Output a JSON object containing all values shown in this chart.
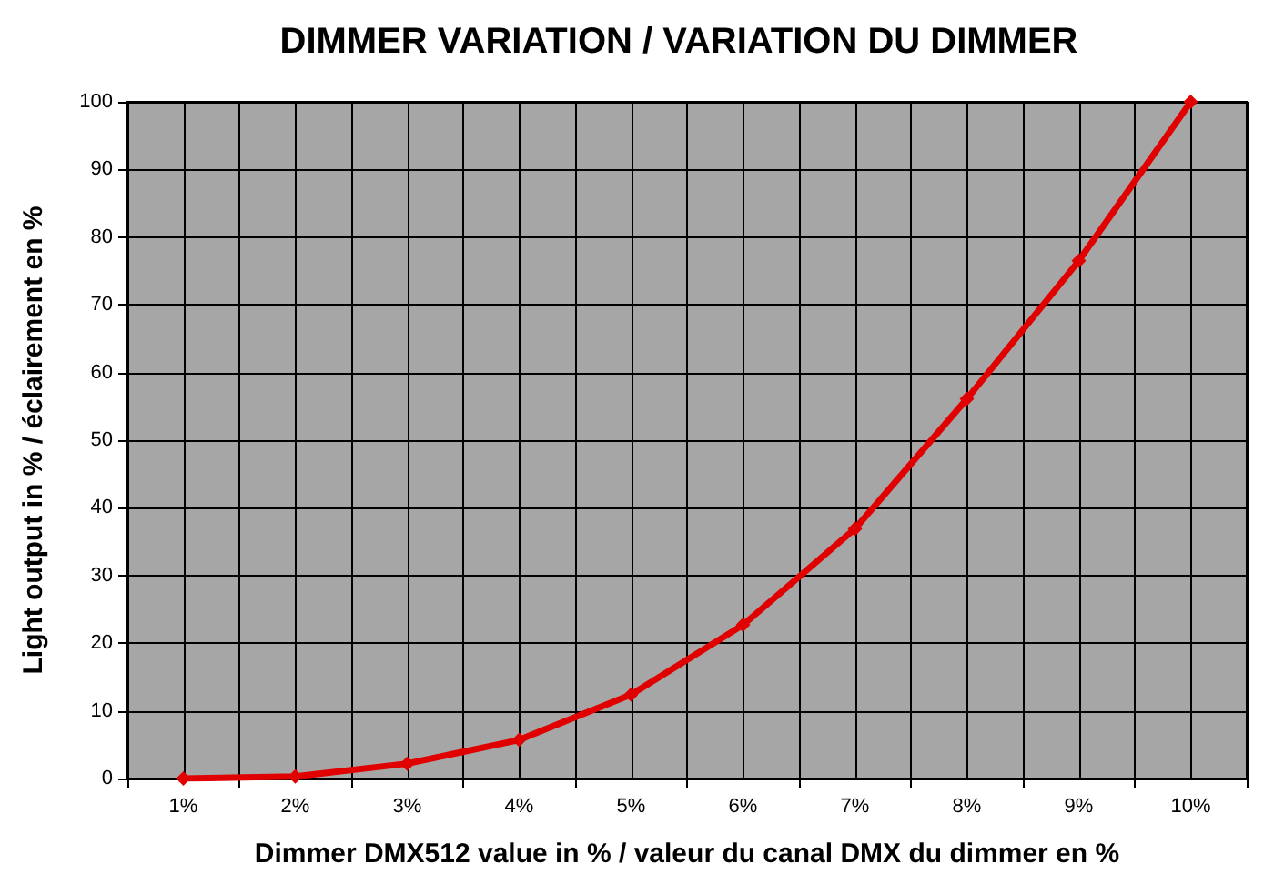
{
  "chart_data": {
    "type": "line",
    "title": "DIMMER VARIATION / VARIATION DU DIMMER",
    "xlabel": "Dimmer DMX512 value in % / valeur du canal DMX du dimmer en %",
    "ylabel": "Light output in % / éclairement en %",
    "categories": [
      "1%",
      "2%",
      "3%",
      "4%",
      "5%",
      "6%",
      "7%",
      "8%",
      "9%",
      "10%"
    ],
    "series": [
      {
        "color": "#e00000",
        "values": [
          0,
          0.3,
          2.2,
          5.7,
          12.4,
          22.7,
          36.9,
          56.1,
          76.5,
          100
        ]
      }
    ],
    "ylim": [
      0,
      100
    ],
    "yticks": [
      0,
      10,
      20,
      30,
      40,
      50,
      60,
      70,
      80,
      90,
      100
    ],
    "grid": true,
    "marker": "diamond",
    "line_style": "solid"
  }
}
